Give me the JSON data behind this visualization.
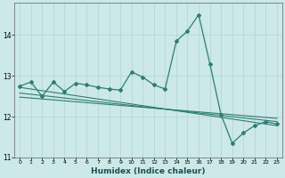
{
  "xlabel": "Humidex (Indice chaleur)",
  "bg_color": "#cce8e8",
  "line_color": "#2e7d72",
  "grid_color": "#b0d4d4",
  "xlim": [
    -0.5,
    23.5
  ],
  "ylim": [
    11.0,
    14.8
  ],
  "yticks": [
    11,
    12,
    13,
    14
  ],
  "xticks": [
    0,
    1,
    2,
    3,
    4,
    5,
    6,
    7,
    8,
    9,
    10,
    11,
    12,
    13,
    14,
    15,
    16,
    17,
    18,
    19,
    20,
    21,
    22,
    23
  ],
  "series1_x": [
    0,
    1,
    2,
    3,
    4,
    5,
    6,
    7,
    8,
    9,
    10,
    11,
    12,
    13,
    14,
    15,
    16,
    17,
    18,
    19,
    20,
    21,
    22,
    23
  ],
  "series1_y": [
    12.75,
    12.85,
    12.5,
    12.85,
    12.62,
    12.82,
    12.78,
    12.72,
    12.68,
    12.65,
    13.1,
    12.97,
    12.78,
    12.68,
    13.85,
    14.1,
    14.5,
    13.3,
    12.05,
    11.35,
    11.6,
    11.78,
    11.88,
    11.82
  ],
  "series2_x": [
    0,
    23
  ],
  "series2_y": [
    12.72,
    11.78
  ],
  "series3_x": [
    0,
    23
  ],
  "series3_y": [
    12.58,
    11.88
  ],
  "series4_x": [
    0,
    23
  ],
  "series4_y": [
    12.48,
    11.96
  ]
}
